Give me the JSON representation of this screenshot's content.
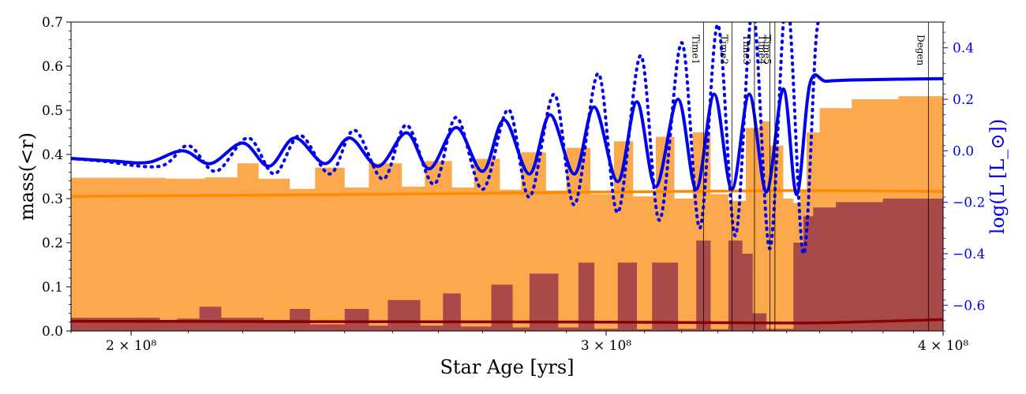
{
  "colors": {
    "core_fill": "#fca84c",
    "core_line": "#ff8c00",
    "inner_fill": "#a94a4a",
    "inner_line": "#8b0000",
    "lum": "#0000ee"
  },
  "chart_data": {
    "type": "line",
    "xlabel": "Star Age [yrs]",
    "ylabel": "mass(<r)",
    "ylabel_right": "log(L [L_⊙])",
    "x_scale": "log",
    "xlim": [
      190000000,
      400000000
    ],
    "ylim": [
      0,
      0.7
    ],
    "ylim_right": [
      -0.7,
      0.5
    ],
    "x_ticks": [
      {
        "value": 200000000,
        "label": "2 × 10⁸"
      },
      {
        "value": 300000000,
        "label": "3 × 10⁸"
      },
      {
        "value": 400000000,
        "label": "4 × 10⁸"
      }
    ],
    "y_ticks": [
      {
        "value": 0.0,
        "label": "0.0"
      },
      {
        "value": 0.1,
        "label": "0.1"
      },
      {
        "value": 0.2,
        "label": "0.2"
      },
      {
        "value": 0.3,
        "label": "0.3"
      },
      {
        "value": 0.4,
        "label": "0.4"
      },
      {
        "value": 0.5,
        "label": "0.5"
      },
      {
        "value": 0.6,
        "label": "0.6"
      },
      {
        "value": 0.7,
        "label": "0.7"
      }
    ],
    "y_ticks_right": [
      {
        "value": -0.6,
        "label": "−0.6"
      },
      {
        "value": -0.4,
        "label": "−0.4"
      },
      {
        "value": -0.2,
        "label": "−0.2"
      },
      {
        "value": 0.0,
        "label": "0.0"
      },
      {
        "value": 0.2,
        "label": "0.2"
      },
      {
        "value": 0.4,
        "label": "0.4"
      }
    ],
    "vlines": [
      {
        "x": 326000000,
        "label": "Time1"
      },
      {
        "x": 334000000,
        "label": "Time2"
      },
      {
        "x": 340500000,
        "label": "Time3"
      },
      {
        "x": 345000000,
        "label": "Time4"
      },
      {
        "x": 346500000,
        "label": "Time5"
      },
      {
        "x": 395000000,
        "label": "Degen"
      }
    ],
    "series": [
      {
        "kind": "area_step",
        "color_key": "core_fill",
        "axis": "left",
        "x": [
          190000000,
          196000000,
          206000000,
          213000000,
          219000000,
          223000000,
          229000000,
          234000000,
          240000000,
          245000000,
          252000000,
          257000000,
          263000000,
          268000000,
          274000000,
          279000000,
          285000000,
          290000000,
          296000000,
          302000000,
          307000000,
          313000000,
          318000000,
          323000000,
          328000000,
          333000000,
          338000000,
          342000000,
          345000000,
          349000000,
          352000000,
          354000000,
          356000000,
          360000000,
          370000000,
          385000000,
          400000000
        ],
        "y": [
          0.347,
          0.347,
          0.345,
          0.348,
          0.38,
          0.345,
          0.322,
          0.37,
          0.325,
          0.38,
          0.327,
          0.385,
          0.325,
          0.39,
          0.32,
          0.405,
          0.318,
          0.415,
          0.31,
          0.43,
          0.305,
          0.44,
          0.3,
          0.45,
          0.31,
          0.295,
          0.46,
          0.475,
          0.42,
          0.3,
          0.29,
          0.32,
          0.45,
          0.505,
          0.525,
          0.532,
          0.538
        ]
      },
      {
        "kind": "area_step",
        "color_key": "inner_fill",
        "axis": "left",
        "x": [
          190000000,
          205000000,
          208000000,
          212000000,
          216000000,
          224000000,
          229000000,
          233000000,
          240000000,
          245000000,
          249000000,
          256000000,
          261000000,
          265000000,
          272000000,
          277000000,
          281000000,
          288000000,
          293000000,
          297000000,
          303000000,
          308000000,
          312000000,
          319000000,
          324000000,
          328000000,
          333000000,
          337000000,
          340000000,
          344000000,
          348000000,
          352000000,
          355000000,
          358000000,
          365000000,
          380000000,
          400000000
        ],
        "y": [
          0.03,
          0.025,
          0.028,
          0.055,
          0.03,
          0.025,
          0.05,
          0.015,
          0.05,
          0.012,
          0.07,
          0.012,
          0.085,
          0.01,
          0.105,
          0.008,
          0.13,
          0.008,
          0.155,
          0.005,
          0.155,
          0.004,
          0.155,
          0.005,
          0.205,
          0.004,
          0.205,
          0.175,
          0.04,
          0.005,
          0.005,
          0.2,
          0.26,
          0.28,
          0.292,
          0.3,
          0.302
        ]
      },
      {
        "kind": "line",
        "color_key": "core_line",
        "axis": "left",
        "x": [
          190000000,
          250000000,
          300000000,
          350000000,
          400000000
        ],
        "y": [
          0.305,
          0.31,
          0.315,
          0.318,
          0.316
        ]
      },
      {
        "kind": "line",
        "color_key": "inner_line",
        "axis": "left",
        "x": [
          190000000,
          250000000,
          300000000,
          350000000,
          370000000,
          400000000
        ],
        "y": [
          0.022,
          0.021,
          0.02,
          0.018,
          0.02,
          0.026
        ]
      },
      {
        "kind": "line",
        "color_key": "lum",
        "axis": "right",
        "x": [
          190000000,
          197000000,
          203000000,
          209000000,
          214000000,
          220000000,
          225000000,
          230000000,
          236000000,
          241000000,
          247000000,
          253000000,
          258000000,
          264000000,
          270000000,
          275000000,
          281000000,
          286000000,
          292000000,
          297000000,
          303000000,
          308000000,
          313000000,
          319000000,
          324000000,
          329000000,
          334000000,
          339000000,
          344000000,
          349000000,
          353000000,
          357000000,
          362000000,
          370000000,
          385000000,
          400000000
        ],
        "y": [
          -0.03,
          -0.04,
          -0.045,
          0.0,
          -0.05,
          0.03,
          -0.06,
          0.05,
          -0.05,
          0.05,
          -0.06,
          0.07,
          -0.07,
          0.09,
          -0.08,
          0.12,
          -0.09,
          0.14,
          -0.09,
          0.17,
          -0.12,
          0.19,
          -0.14,
          0.2,
          -0.15,
          0.22,
          -0.15,
          0.22,
          -0.16,
          0.24,
          -0.17,
          0.26,
          0.27,
          0.275,
          0.278,
          0.28
        ]
      },
      {
        "kind": "dotted",
        "color_key": "lum",
        "axis": "right",
        "x": [
          190000000,
          195000000,
          205000000,
          210000000,
          215000000,
          221000000,
          226000000,
          231000000,
          237000000,
          242000000,
          248000000,
          253000000,
          259000000,
          264000000,
          270000000,
          276000000,
          281000000,
          287000000,
          292000000,
          298000000,
          303000000,
          309000000,
          314000000,
          320000000,
          325000000,
          330000000,
          335000000,
          340000000,
          345000000,
          350000000,
          355000000,
          359000000,
          362000000
        ],
        "y": [
          -0.03,
          -0.04,
          -0.06,
          0.02,
          -0.08,
          0.05,
          -0.09,
          0.06,
          -0.09,
          0.08,
          -0.11,
          0.1,
          -0.13,
          0.13,
          -0.15,
          0.16,
          -0.18,
          0.22,
          -0.21,
          0.3,
          -0.24,
          0.37,
          -0.27,
          0.42,
          -0.3,
          0.49,
          -0.33,
          0.55,
          -0.38,
          0.6,
          -0.4,
          0.45,
          0.5
        ]
      }
    ]
  }
}
